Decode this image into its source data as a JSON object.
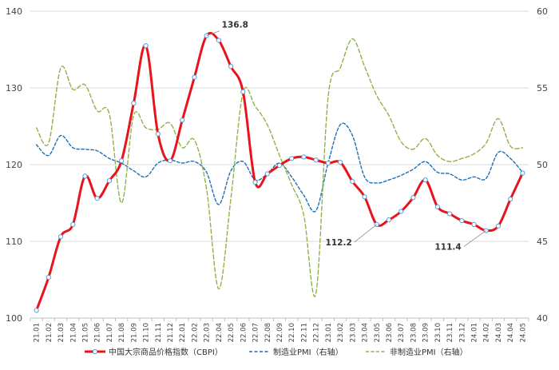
{
  "chart_data": {
    "type": "line",
    "title": "",
    "xlabel": "",
    "ylabel": "",
    "y_left_range": [
      100,
      140
    ],
    "y_left_ticks": [
      100,
      110,
      120,
      130,
      140
    ],
    "y_right_range": [
      40,
      60
    ],
    "y_right_ticks": [
      40,
      45,
      50,
      55,
      60
    ],
    "grid": "horizontal",
    "legend_position": "bottom",
    "categories": [
      "21.01",
      "21.02",
      "21.03",
      "21.04",
      "21.05",
      "21.06",
      "21.07",
      "21.08",
      "21.09",
      "21.10",
      "21.11",
      "21.12",
      "22.01",
      "22.02",
      "22.03",
      "22.04",
      "22.05",
      "22.06",
      "22.07",
      "22.08",
      "22.09",
      "22.10",
      "22.11",
      "22.12",
      "23.01",
      "23.02",
      "23.03",
      "23.04",
      "23.05",
      "23.06",
      "23.07",
      "23.08",
      "23.09",
      "23.10",
      "23.11",
      "23.12",
      "24.01",
      "24.02",
      "24.03",
      "24.04",
      "24.05"
    ],
    "series": [
      {
        "name": "中国大宗商品价格指数（CBPI）",
        "axis": "left",
        "color": "#e8141c",
        "style": "solid",
        "values": [
          101.0,
          105.3,
          110.6,
          112.2,
          118.5,
          115.6,
          117.9,
          120.5,
          128.0,
          135.5,
          124.0,
          120.5,
          125.8,
          131.4,
          136.8,
          136.2,
          132.8,
          129.5,
          117.7,
          118.8,
          119.9,
          120.8,
          121.0,
          120.6,
          120.2,
          120.3,
          117.8,
          115.8,
          112.2,
          112.8,
          113.9,
          115.7,
          118.0,
          114.5,
          113.6,
          112.7,
          112.2,
          111.4,
          112.0,
          115.5,
          118.9
        ],
        "markers": true
      },
      {
        "name": "制造业PMI（右轴）",
        "axis": "right",
        "color": "#1f6eb5",
        "style": "dashed",
        "values": [
          51.3,
          50.6,
          51.9,
          51.1,
          51.0,
          50.9,
          50.4,
          50.1,
          49.6,
          49.2,
          50.1,
          50.3,
          50.1,
          50.2,
          49.5,
          47.4,
          49.6,
          50.2,
          49.0,
          49.4,
          50.1,
          49.2,
          48.0,
          47.0,
          50.1,
          52.6,
          51.9,
          49.2,
          48.8,
          49.0,
          49.3,
          49.7,
          50.2,
          49.5,
          49.4,
          49.0,
          49.2,
          49.1,
          50.8,
          50.4,
          49.5
        ]
      },
      {
        "name": "非制造业PMI（右轴）",
        "axis": "right",
        "color": "#8fb24a",
        "style": "dashed",
        "values": [
          52.4,
          51.4,
          56.3,
          54.9,
          55.2,
          53.5,
          53.3,
          47.5,
          53.2,
          52.4,
          52.3,
          52.7,
          51.1,
          51.6,
          48.4,
          41.9,
          47.8,
          54.7,
          53.8,
          52.6,
          50.6,
          48.7,
          46.7,
          41.6,
          54.4,
          56.3,
          58.2,
          56.4,
          54.5,
          53.2,
          51.5,
          51.0,
          51.7,
          50.6,
          50.2,
          50.4,
          50.7,
          51.4,
          53.0,
          51.2,
          51.1
        ]
      }
    ],
    "annotations": [
      {
        "label": "136.8",
        "series": "中国大宗商品价格指数（CBPI）",
        "category": "22.03",
        "value": 136.8
      },
      {
        "label": "112.2",
        "series": "中国大宗商品价格指数（CBPI）",
        "category": "23.05",
        "value": 112.2
      },
      {
        "label": "111.4",
        "series": "中国大宗商品价格指数（CBPI）",
        "category": "24.02",
        "value": 111.4
      }
    ]
  }
}
